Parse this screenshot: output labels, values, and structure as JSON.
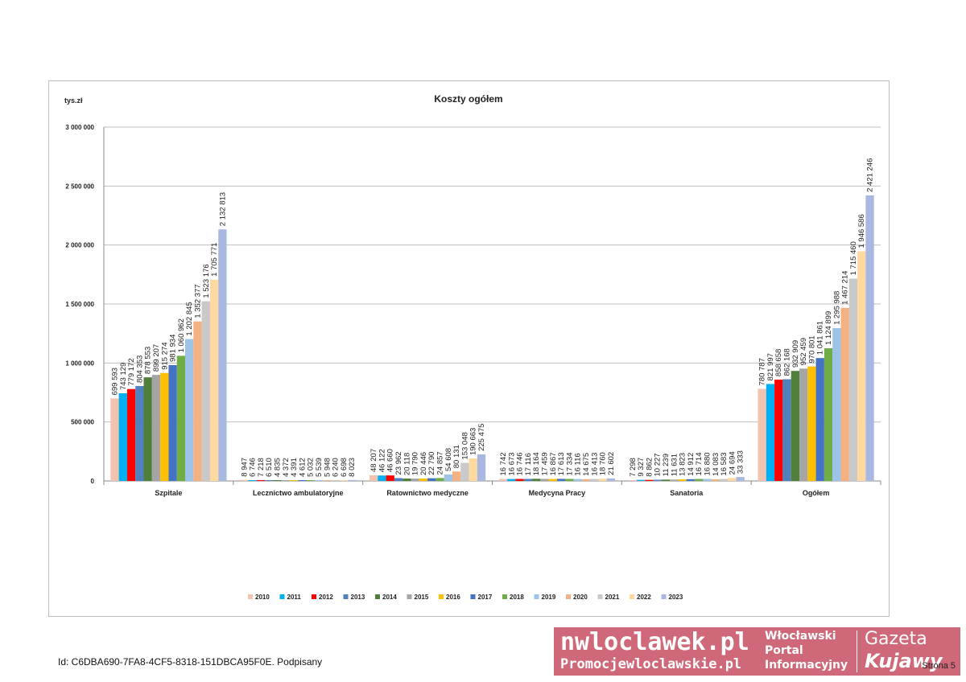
{
  "chart_data": {
    "type": "bar",
    "title": "Koszty ogółem",
    "ylabel": "tys.zł",
    "xlabel": "",
    "ylim": [
      0,
      3000000
    ],
    "yticks": [
      0,
      500000,
      1000000,
      1500000,
      2000000,
      2500000,
      3000000
    ],
    "ytick_labels": [
      "0",
      "500 000",
      "1 000 000",
      "1 500 000",
      "2 000 000",
      "2 500 000",
      "3 000 000"
    ],
    "grid": true,
    "legend_position": "bottom",
    "categories": [
      "Szpitale",
      "Lecznictwo ambulatoryjne",
      "Ratownictwo medyczne",
      "Medycyna Pracy",
      "Sanatoria",
      "Ogółem"
    ],
    "series": [
      {
        "name": "2010",
        "color": "#f2c4b0",
        "values": [
          699593,
          8947,
          48207,
          16742,
          7298,
          780787
        ],
        "labels": [
          "699 593",
          "8 947",
          "48 207",
          "16 742",
          "7 298",
          "780 787"
        ]
      },
      {
        "name": "2011",
        "color": "#00b0f0",
        "values": [
          743129,
          6746,
          46122,
          16673,
          9327,
          821997
        ],
        "labels": [
          "743 129",
          "6 746",
          "46 122",
          "16 673",
          "9 327",
          "821 997"
        ]
      },
      {
        "name": "2012",
        "color": "#ff0000",
        "values": [
          779172,
          7218,
          46660,
          16746,
          8862,
          858658
        ],
        "labels": [
          "779 172",
          "7 218",
          "46 660",
          "16 746",
          "8 862",
          "858 658"
        ]
      },
      {
        "name": "2013",
        "color": "#4f81bd",
        "values": [
          804353,
          6510,
          23962,
          17116,
          10227,
          862168
        ],
        "labels": [
          "804 353",
          "6 510",
          "23 962",
          "17 116",
          "10 227",
          "862 168"
        ]
      },
      {
        "name": "2014",
        "color": "#4f7f3a",
        "values": [
          878553,
          4835,
          20118,
          18164,
          11239,
          932909
        ],
        "labels": [
          "878 553",
          "4 835",
          "20 118",
          "18 164",
          "11 239",
          "932 909"
        ]
      },
      {
        "name": "2015",
        "color": "#a5a5a5",
        "values": [
          899207,
          4372,
          19790,
          17459,
          11631,
          952459
        ],
        "labels": [
          "899 207",
          "4 372",
          "19 790",
          "17 459",
          "11 631",
          "952 459"
        ]
      },
      {
        "name": "2016",
        "color": "#ffc000",
        "values": [
          915274,
          4391,
          20446,
          16867,
          13823,
          970801
        ],
        "labels": [
          "915 274",
          "4 391",
          "20 446",
          "16 867",
          "13 823",
          "970 801"
        ]
      },
      {
        "name": "2017",
        "color": "#4472c4",
        "values": [
          981934,
          4612,
          22790,
          17613,
          14912,
          1041861
        ],
        "labels": [
          "981 934",
          "4 612",
          "22 790",
          "17 613",
          "14 912",
          "1 041 861"
        ]
      },
      {
        "name": "2018",
        "color": "#70ad47",
        "values": [
          1060962,
          5032,
          24857,
          17334,
          16714,
          1124899
        ],
        "labels": [
          "1 060 962",
          "5 032",
          "24 857",
          "17 334",
          "16 714",
          "1 124 899"
        ]
      },
      {
        "name": "2019",
        "color": "#9dc3e6",
        "values": [
          1202845,
          5539,
          54608,
          16116,
          16880,
          1295988
        ],
        "labels": [
          "1 202 845",
          "5 539",
          "54 608",
          "16 116",
          "16 880",
          "1 295 988"
        ]
      },
      {
        "name": "2020",
        "color": "#f4b183",
        "values": [
          1352377,
          5948,
          80131,
          14675,
          14083,
          1467214
        ],
        "labels": [
          "1 352 377",
          "5 948",
          "80 131",
          "14 675",
          "14 083",
          "1 467 214"
        ]
      },
      {
        "name": "2021",
        "color": "#c9c9c9",
        "values": [
          1523176,
          6240,
          153048,
          16413,
          16583,
          1715460
        ],
        "labels": [
          "1 523 176",
          "6 240",
          "153 048",
          "16 413",
          "16 583",
          "1 715 460"
        ]
      },
      {
        "name": "2022",
        "color": "#ffd9a0",
        "values": [
          1705771,
          6698,
          190663,
          18760,
          24694,
          1946586
        ],
        "labels": [
          "1 705 771",
          "6 698",
          "190 663",
          "18 760",
          "24 694",
          "1 946 586"
        ]
      },
      {
        "name": "2023",
        "color": "#a9b8e0",
        "values": [
          2132813,
          8023,
          225475,
          21602,
          33333,
          2421246
        ],
        "labels": [
          "2 132 813",
          "8 023",
          "225 475",
          "21 602",
          "33 333",
          "2 421 246"
        ]
      }
    ]
  },
  "footer": {
    "document_id": "Id: C6DBA690-7FA8-4CF5-8318-151DBCA95F0E. Podpisany",
    "page_label": "Strona 5"
  },
  "watermark": {
    "logo_main": "nwloclawek.pl",
    "logo_sub": "Promocjewloclawskie.pl",
    "portal_line1": "Włocławski",
    "portal_line2": "Portal",
    "portal_line3": "Informacyjny",
    "gazeta_line1": "Gazeta",
    "gazeta_line2": "Kujawy",
    "background_color": "#cf6878"
  }
}
